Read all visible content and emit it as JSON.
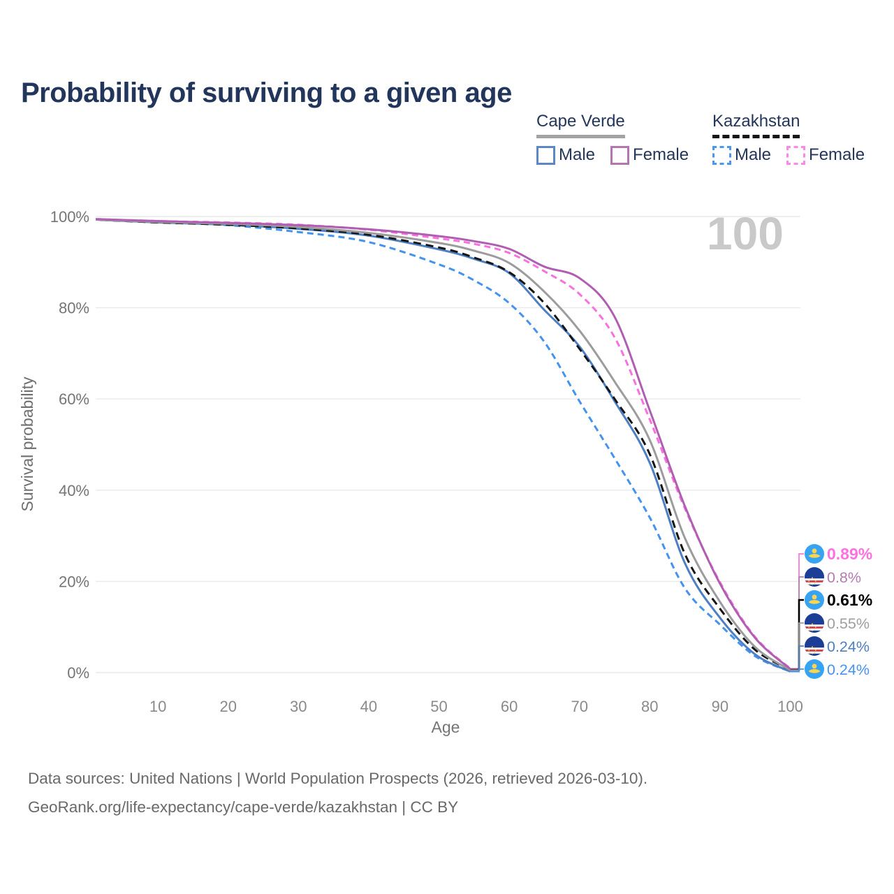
{
  "title": "Probability of surviving to a given age",
  "watermark": "100",
  "legend": {
    "groups": [
      {
        "label": "Cape Verde",
        "line_style": "solid",
        "items": [
          {
            "label": "Male",
            "color": "#5b87c6"
          },
          {
            "label": "Female",
            "color": "#b476b0"
          }
        ]
      },
      {
        "label": "Kazakhstan",
        "line_style": "dashed",
        "items": [
          {
            "label": "Male",
            "color": "#4a97f2"
          },
          {
            "label": "Female",
            "color": "#fb87e6"
          }
        ]
      }
    ]
  },
  "chart_data": {
    "type": "line",
    "title": "Probability of surviving to a given age",
    "xlabel": "Age",
    "ylabel": "Survival probability",
    "xlim": [
      0,
      100
    ],
    "ylim": [
      0,
      100
    ],
    "grid": "horizontal",
    "legend_position": "top-right",
    "x_tick_labels": [
      "10",
      "20",
      "30",
      "40",
      "50",
      "60",
      "70",
      "80",
      "90",
      "100"
    ],
    "x_tick_values": [
      10,
      20,
      30,
      40,
      50,
      60,
      70,
      80,
      90,
      100
    ],
    "y_tick_labels": [
      "0%",
      "20%",
      "40%",
      "60%",
      "80%",
      "100%"
    ],
    "y_tick_values": [
      0,
      20,
      40,
      60,
      80,
      100
    ],
    "ages": [
      0,
      10,
      20,
      30,
      40,
      50,
      55,
      60,
      65,
      70,
      75,
      80,
      85,
      90,
      95,
      100
    ],
    "series": [
      {
        "name": "Kazakhstan Male",
        "country": "Kazakhstan",
        "sex": "Male",
        "style": "dashed",
        "color": "#4493ee",
        "values": [
          99.4,
          98.8,
          98.1,
          96.6,
          94.4,
          89.5,
          86.0,
          81.0,
          72.5,
          59.5,
          47.0,
          34.0,
          18.5,
          10.5,
          3.6,
          0.24
        ]
      },
      {
        "name": "Cape Verde Male",
        "country": "Cape Verde",
        "sex": "Male",
        "style": "solid",
        "color": "#4d7fc3",
        "values": [
          99.4,
          98.7,
          98.2,
          97.3,
          95.8,
          92.8,
          90.7,
          87.6,
          79.5,
          71.5,
          59.5,
          46.0,
          24.0,
          12.0,
          4.0,
          0.24
        ]
      },
      {
        "name": "Kazakhstan Both sexes",
        "country": "Kazakhstan",
        "sex": "Both",
        "style": "dashed",
        "color": "#151515",
        "values": [
          99.4,
          98.7,
          98.2,
          97.4,
          96.0,
          93.2,
          91.0,
          87.8,
          81.0,
          71.0,
          60.0,
          47.9,
          26.0,
          14.0,
          5.0,
          0.61
        ]
      },
      {
        "name": "Cape Verde Both sexes",
        "country": "Cape Verde",
        "sex": "Both",
        "style": "solid",
        "color": "#9c9c9c",
        "values": [
          99.4,
          98.8,
          98.4,
          97.7,
          96.4,
          94.2,
          92.5,
          89.8,
          83.5,
          75.0,
          63.8,
          51.0,
          29.5,
          15.5,
          5.6,
          0.55
        ]
      },
      {
        "name": "Kazakhstan Female",
        "country": "Kazakhstan",
        "sex": "Female",
        "style": "dashed",
        "color": "#f970e1",
        "values": [
          99.5,
          99.0,
          98.7,
          98.2,
          97.1,
          95.2,
          94.0,
          92.0,
          88.0,
          83.0,
          73.5,
          55.5,
          36.0,
          19.8,
          7.8,
          0.89
        ]
      },
      {
        "name": "Cape Verde Female",
        "country": "Cape Verde",
        "sex": "Female",
        "style": "solid",
        "color": "#b05eb2",
        "values": [
          99.5,
          99.0,
          98.6,
          98.1,
          97.2,
          95.7,
          94.6,
          92.9,
          89.0,
          86.5,
          78.0,
          57.5,
          36.5,
          19.5,
          7.6,
          0.8
        ]
      }
    ],
    "end_labels": [
      {
        "text": "0.89%",
        "value": 0.89,
        "color": "#ff70e1",
        "flag": "kazakhstan",
        "series": "Kazakhstan Female"
      },
      {
        "text": "0.8%",
        "value": 0.8,
        "color": "#b57ab2",
        "flag": "cape-verde",
        "series": "Cape Verde Female"
      },
      {
        "text": "0.61%",
        "value": 0.61,
        "color": "#000000",
        "flag": "kazakhstan",
        "series": "Kazakhstan Both sexes"
      },
      {
        "text": "0.55%",
        "value": 0.55,
        "color": "#9e9e9e",
        "flag": "cape-verde",
        "series": "Cape Verde Both sexes"
      },
      {
        "text": "0.24%",
        "value": 0.24,
        "color": "#4d7fc3",
        "flag": "cape-verde",
        "series": "Cape Verde Male"
      },
      {
        "text": "0.24%",
        "value": 0.24,
        "color": "#4493ee",
        "flag": "kazakhstan",
        "series": "Kazakhstan Male"
      }
    ]
  },
  "footer": {
    "line1": "Data sources: United Nations | World Population Prospects (2026, retrieved 2026-03-10).",
    "line2": "GeoRank.org/life-expectancy/cape-verde/kazakhstan | CC BY"
  }
}
